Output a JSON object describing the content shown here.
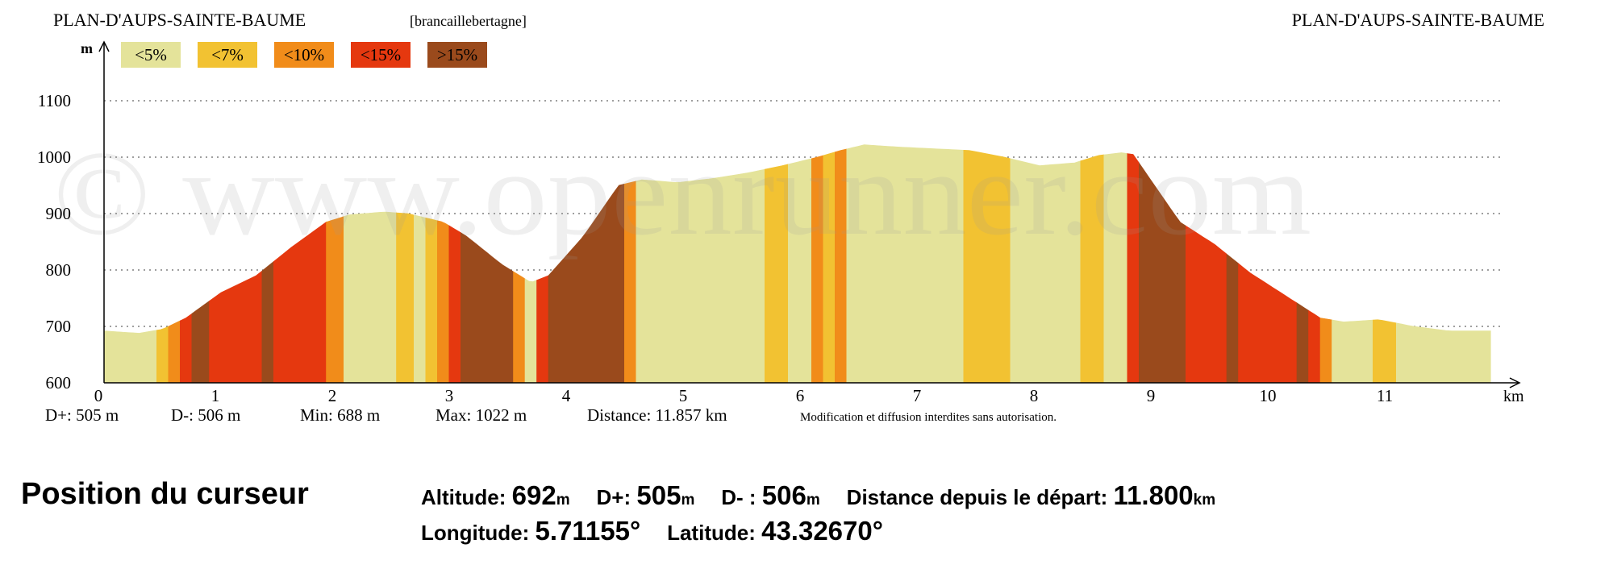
{
  "header": {
    "left_title": "PLAN-D'AUPS-SAINTE-BAUME",
    "author": "[brancaillebertagne]",
    "right_title": "PLAN-D'AUPS-SAINTE-BAUME"
  },
  "watermark": "© www.openrunner.com",
  "legend": [
    {
      "label": "<5%",
      "color": "#e4e39a"
    },
    {
      "label": "<7%",
      "color": "#f2c232"
    },
    {
      "label": "<10%",
      "color": "#f18c1a"
    },
    {
      "label": "<15%",
      "color": "#e5380f"
    },
    {
      "label": ">15%",
      "color": "#9a4a1c"
    }
  ],
  "chart_data": {
    "type": "area",
    "xlabel": "km",
    "ylabel": "m",
    "xlim": [
      0,
      12.3
    ],
    "ylim": [
      600,
      1100
    ],
    "x_ticks": [
      0,
      1,
      2,
      3,
      4,
      5,
      6,
      7,
      8,
      9,
      10,
      11
    ],
    "y_ticks": [
      600,
      700,
      800,
      900,
      1000,
      1100
    ],
    "grid": "horizontal dotted",
    "profile": {
      "x": [
        0,
        0.3,
        0.5,
        0.7,
        1.0,
        1.3,
        1.6,
        1.9,
        2.1,
        2.4,
        2.6,
        2.9,
        3.1,
        3.4,
        3.65,
        3.8,
        4.1,
        4.4,
        4.6,
        4.9,
        5.2,
        5.5,
        5.8,
        6.1,
        6.3,
        6.5,
        6.8,
        7.1,
        7.4,
        7.7,
        8.0,
        8.3,
        8.5,
        8.7,
        8.8,
        8.95,
        9.2,
        9.5,
        9.8,
        10.1,
        10.4,
        10.6,
        10.9,
        11.2,
        11.5,
        11.857
      ],
      "y": [
        692,
        688,
        695,
        715,
        760,
        790,
        840,
        885,
        898,
        903,
        900,
        885,
        860,
        810,
        778,
        790,
        860,
        950,
        960,
        955,
        962,
        972,
        985,
        1000,
        1012,
        1022,
        1018,
        1015,
        1012,
        1000,
        985,
        990,
        1003,
        1008,
        1005,
        960,
        885,
        845,
        795,
        755,
        715,
        708,
        712,
        700,
        692,
        692
      ]
    },
    "segments": [
      {
        "from": 0.0,
        "to": 0.45,
        "grade": "<5%"
      },
      {
        "from": 0.45,
        "to": 0.55,
        "grade": "<7%"
      },
      {
        "from": 0.55,
        "to": 0.65,
        "grade": "<10%"
      },
      {
        "from": 0.65,
        "to": 0.75,
        "grade": "<15%"
      },
      {
        "from": 0.75,
        "to": 0.9,
        "grade": ">15%"
      },
      {
        "from": 0.9,
        "to": 1.35,
        "grade": "<15%"
      },
      {
        "from": 1.35,
        "to": 1.45,
        "grade": ">15%"
      },
      {
        "from": 1.45,
        "to": 1.9,
        "grade": "<15%"
      },
      {
        "from": 1.9,
        "to": 2.05,
        "grade": "<10%"
      },
      {
        "from": 2.05,
        "to": 2.5,
        "grade": "<5%"
      },
      {
        "from": 2.5,
        "to": 2.65,
        "grade": "<7%"
      },
      {
        "from": 2.65,
        "to": 2.75,
        "grade": "<5%"
      },
      {
        "from": 2.75,
        "to": 2.85,
        "grade": "<7%"
      },
      {
        "from": 2.85,
        "to": 2.95,
        "grade": "<10%"
      },
      {
        "from": 2.95,
        "to": 3.05,
        "grade": "<15%"
      },
      {
        "from": 3.05,
        "to": 3.5,
        "grade": ">15%"
      },
      {
        "from": 3.5,
        "to": 3.6,
        "grade": "<10%"
      },
      {
        "from": 3.6,
        "to": 3.7,
        "grade": "<5%"
      },
      {
        "from": 3.7,
        "to": 3.8,
        "grade": "<15%"
      },
      {
        "from": 3.8,
        "to": 4.45,
        "grade": ">15%"
      },
      {
        "from": 4.45,
        "to": 4.55,
        "grade": "<10%"
      },
      {
        "from": 4.55,
        "to": 5.65,
        "grade": "<5%"
      },
      {
        "from": 5.65,
        "to": 5.85,
        "grade": "<7%"
      },
      {
        "from": 5.85,
        "to": 6.05,
        "grade": "<5%"
      },
      {
        "from": 6.05,
        "to": 6.15,
        "grade": "<10%"
      },
      {
        "from": 6.15,
        "to": 6.25,
        "grade": "<7%"
      },
      {
        "from": 6.25,
        "to": 6.35,
        "grade": "<10%"
      },
      {
        "from": 6.35,
        "to": 7.35,
        "grade": "<5%"
      },
      {
        "from": 7.35,
        "to": 7.75,
        "grade": "<7%"
      },
      {
        "from": 7.75,
        "to": 8.35,
        "grade": "<5%"
      },
      {
        "from": 8.35,
        "to": 8.55,
        "grade": "<7%"
      },
      {
        "from": 8.55,
        "to": 8.75,
        "grade": "<5%"
      },
      {
        "from": 8.75,
        "to": 8.85,
        "grade": "<15%"
      },
      {
        "from": 8.85,
        "to": 9.25,
        "grade": ">15%"
      },
      {
        "from": 9.25,
        "to": 9.6,
        "grade": "<15%"
      },
      {
        "from": 9.6,
        "to": 9.7,
        "grade": ">15%"
      },
      {
        "from": 9.7,
        "to": 10.2,
        "grade": "<15%"
      },
      {
        "from": 10.2,
        "to": 10.3,
        "grade": ">15%"
      },
      {
        "from": 10.3,
        "to": 10.4,
        "grade": "<15%"
      },
      {
        "from": 10.4,
        "to": 10.5,
        "grade": "<10%"
      },
      {
        "from": 10.5,
        "to": 10.85,
        "grade": "<5%"
      },
      {
        "from": 10.85,
        "to": 11.05,
        "grade": "<7%"
      },
      {
        "from": 11.05,
        "to": 11.857,
        "grade": "<5%"
      }
    ]
  },
  "stats": {
    "d_plus": "D+: 505 m",
    "d_minus": "D-: 506 m",
    "min": "Min: 688 m",
    "max": "Max: 1022 m",
    "distance": "Distance: 11.857 km",
    "notice": "Modification et diffusion interdites sans autorisation."
  },
  "cursor": {
    "title": "Position du curseur",
    "altitude_label": "Altitude: ",
    "altitude_value": "692",
    "altitude_unit": "m",
    "dplus_label": "D+: ",
    "dplus_value": "505",
    "dplus_unit": "m",
    "dminus_label": "D- : ",
    "dminus_value": "506",
    "dminus_unit": "m",
    "distance_label": "Distance depuis le départ: ",
    "distance_value": "11.800",
    "distance_unit": "km",
    "longitude_label": "Longitude: ",
    "longitude_value": "5.71155°",
    "latitude_label": "Latitude: ",
    "latitude_value": "43.32670°"
  }
}
